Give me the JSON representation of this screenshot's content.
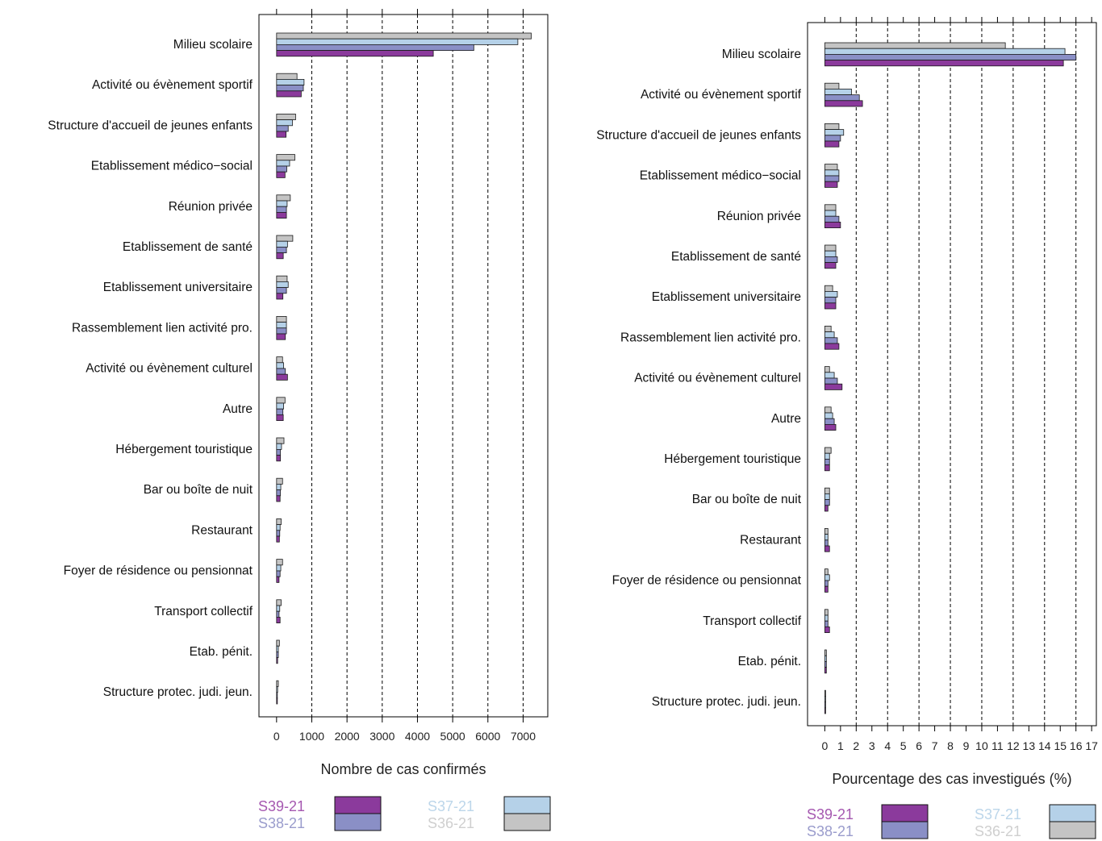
{
  "colors": {
    "S39-21": "#8b3a9c",
    "S38-21": "#8a8fc6",
    "S37-21": "#b5d1e8",
    "S36-21": "#c4c4c4",
    "legend_text_S39": "#a558b0",
    "legend_text_S38": "#9a9ccc",
    "legend_text_S37": "#bcd6ea",
    "legend_text_S36": "#cfcfcf"
  },
  "legend": [
    "S39-21",
    "S38-21",
    "S37-21",
    "S36-21"
  ],
  "chart_data": [
    {
      "type": "bar",
      "orientation": "horizontal",
      "xlabel": "Nombre de cas confirmés",
      "xlim": [
        -500,
        7700
      ],
      "xticks": [
        0,
        1000,
        2000,
        3000,
        4000,
        5000,
        6000,
        7000
      ],
      "xtick_labels": [
        "0",
        "1000",
        "2000",
        "3000",
        "4000",
        "5000",
        "6000",
        "7000"
      ],
      "grid": "vertical dashed",
      "categories": [
        "Milieu scolaire",
        "Activité ou évènement sportif",
        "Structure d'accueil de jeunes enfants",
        "Etablissement médico−social",
        "Réunion privée",
        "Etablissement de santé",
        "Etablissement universitaire",
        "Rassemblement lien activité pro.",
        "Activité ou évènement culturel",
        "Autre",
        "Hébergement touristique",
        "Bar ou boîte de nuit",
        "Restaurant",
        "Foyer de résidence ou pensionnat",
        "Transport collectif",
        "Etab. pénit.",
        "Structure protec. judi. jeun."
      ],
      "series": [
        {
          "name": "S36-21",
          "values": [
            7230,
            580,
            540,
            520,
            390,
            460,
            300,
            280,
            170,
            240,
            210,
            170,
            130,
            170,
            130,
            80,
            50
          ]
        },
        {
          "name": "S37-21",
          "values": [
            6850,
            780,
            450,
            370,
            300,
            310,
            330,
            280,
            200,
            200,
            140,
            120,
            100,
            120,
            90,
            50,
            30
          ]
        },
        {
          "name": "S38-21",
          "values": [
            5600,
            760,
            330,
            290,
            280,
            280,
            280,
            280,
            250,
            180,
            110,
            110,
            90,
            100,
            70,
            50,
            20
          ]
        },
        {
          "name": "S39-21",
          "values": [
            4450,
            700,
            270,
            240,
            280,
            190,
            180,
            250,
            310,
            190,
            110,
            100,
            80,
            70,
            100,
            30,
            10
          ]
        }
      ]
    },
    {
      "type": "bar",
      "orientation": "horizontal",
      "xlabel": "Pourcentage des cas investigués (%)",
      "xlim": [
        -1.1,
        17.3
      ],
      "xticks": [
        0,
        1,
        2,
        3,
        4,
        5,
        6,
        7,
        8,
        9,
        10,
        11,
        12,
        13,
        14,
        15,
        16,
        17
      ],
      "xtick_labels": [
        "0",
        "1",
        "2",
        "3",
        "4",
        "5",
        "6",
        "7",
        "8",
        "9",
        "10",
        "11",
        "12",
        "13",
        "14",
        "15",
        "16",
        "17"
      ],
      "grid": "vertical dashed every 2",
      "categories": [
        "Milieu scolaire",
        "Activité ou évènement sportif",
        "Structure d'accueil de jeunes enfants",
        "Etablissement médico−social",
        "Réunion privée",
        "Etablissement de santé",
        "Etablissement universitaire",
        "Rassemblement lien activité pro.",
        "Activité ou évènement culturel",
        "Autre",
        "Hébergement touristique",
        "Bar ou boîte de nuit",
        "Restaurant",
        "Foyer de résidence ou pensionnat",
        "Transport collectif",
        "Etab. pénit.",
        "Structure protec. judi. jeun."
      ],
      "series": [
        {
          "name": "S36-21",
          "values": [
            11.5,
            0.9,
            0.9,
            0.8,
            0.7,
            0.7,
            0.5,
            0.4,
            0.3,
            0.4,
            0.4,
            0.3,
            0.2,
            0.2,
            0.2,
            0.1,
            0.03
          ]
        },
        {
          "name": "S37-21",
          "values": [
            15.3,
            1.7,
            1.2,
            0.9,
            0.7,
            0.7,
            0.8,
            0.6,
            0.6,
            0.5,
            0.3,
            0.3,
            0.2,
            0.3,
            0.2,
            0.1,
            0.03
          ]
        },
        {
          "name": "S38-21",
          "values": [
            16.0,
            2.2,
            1.0,
            0.9,
            0.9,
            0.8,
            0.7,
            0.8,
            0.8,
            0.6,
            0.3,
            0.3,
            0.2,
            0.2,
            0.2,
            0.1,
            0.03
          ]
        },
        {
          "name": "S39-21",
          "values": [
            15.2,
            2.4,
            0.9,
            0.8,
            1.0,
            0.7,
            0.7,
            0.9,
            1.1,
            0.7,
            0.3,
            0.2,
            0.3,
            0.2,
            0.3,
            0.1,
            0.05
          ]
        }
      ]
    }
  ]
}
